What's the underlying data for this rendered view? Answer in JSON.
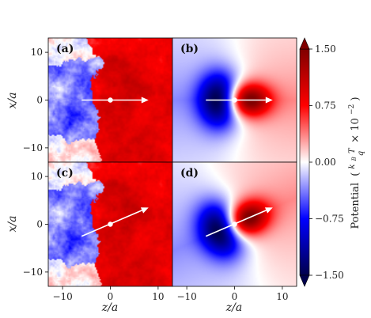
{
  "chart_data": {
    "type": "heatmap",
    "panels": [
      {
        "label": "(a)",
        "kind": "noisy",
        "arrow": {
          "from": [
            -6,
            0
          ],
          "to": [
            8,
            0
          ]
        },
        "dot": [
          0,
          0
        ]
      },
      {
        "label": "(b)",
        "kind": "smooth",
        "arrow": {
          "from": [
            -6,
            0
          ],
          "to": [
            8,
            0
          ]
        },
        "dot": [
          0,
          0
        ]
      },
      {
        "label": "(c)",
        "kind": "noisy",
        "arrow": {
          "from": [
            -6,
            -2.5
          ],
          "to": [
            8,
            3.5
          ]
        },
        "dot": [
          0,
          0
        ]
      },
      {
        "label": "(d)",
        "kind": "smooth",
        "arrow": {
          "from": [
            -6,
            -2.5
          ],
          "to": [
            8,
            3.5
          ]
        },
        "dot": [
          0,
          0
        ]
      }
    ],
    "xlabel": "z/a",
    "ylabel": "x/a",
    "xlim": [
      -13,
      13
    ],
    "ylim": [
      -13,
      13
    ],
    "xticks": [
      -10,
      0,
      10
    ],
    "yticks": [
      -10,
      0,
      10
    ],
    "xtick_labels": [
      "−10",
      "0",
      "10"
    ],
    "ytick_labels": [
      "−10",
      "0",
      "10"
    ],
    "colorbar": {
      "label": "Potential",
      "unit_numerator": "k",
      "unit_numerator_sub": "B",
      "unit_numerator_tail": "T",
      "unit_denominator": "q",
      "unit_factor": "× 10",
      "unit_exponent": "−2",
      "min": -1.5,
      "max": 1.5,
      "ticks": [
        -1.5,
        -0.75,
        0,
        0.75,
        1.5
      ],
      "tick_labels": [
        "−1.50",
        "−0.75",
        "0.00",
        "0.75",
        "1.50"
      ],
      "colormap": "seismic"
    }
  }
}
